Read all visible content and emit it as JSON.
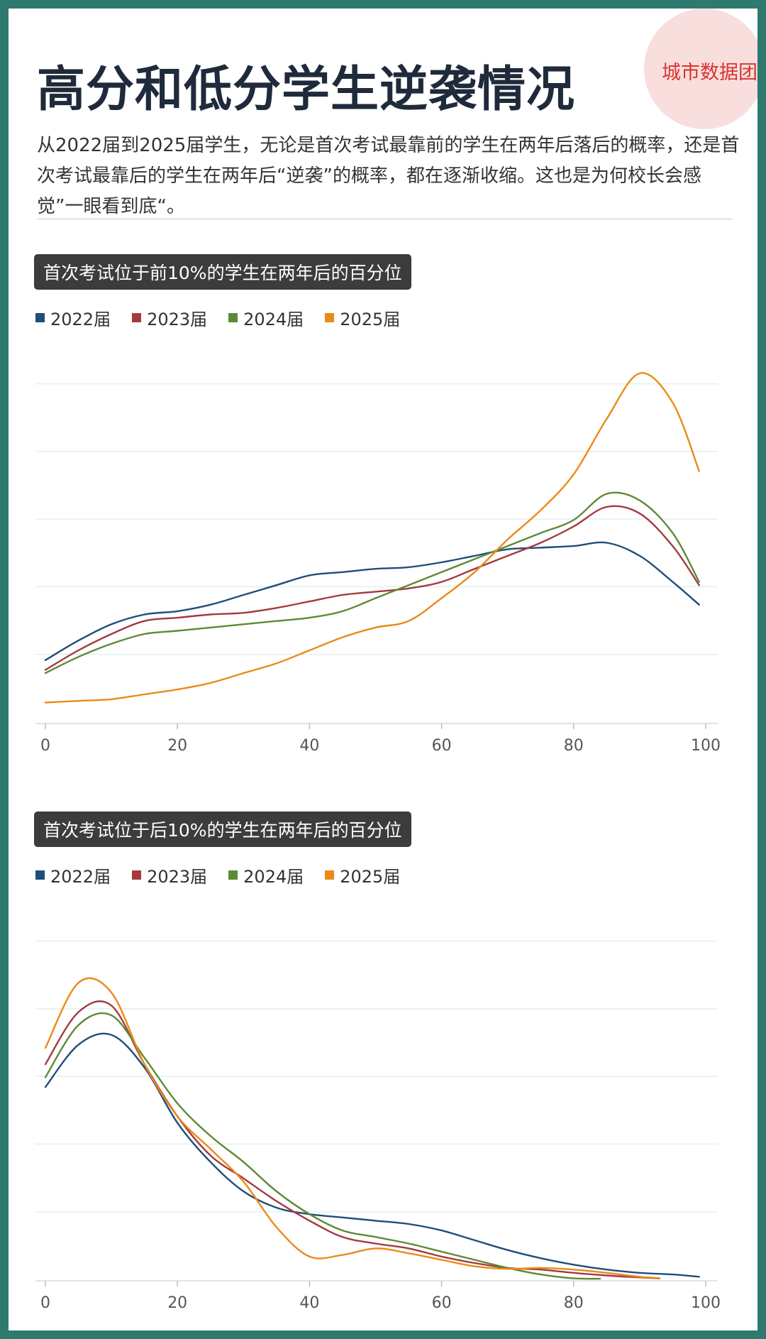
{
  "header": {
    "title": "高分和低分学生逆袭情况",
    "description": "从2022届到2025届学生，无论是首次考试最靠前的学生在两年后落后的概率，还是首次考试最靠后的学生在两年后“逆袭”的概率，都在逐渐收缩。这也是为何校长会感觉”一眼看到底“。",
    "watermark": "城市数据团"
  },
  "colors": {
    "2022届": "#1f4e79",
    "2023届": "#a33a3f",
    "2024届": "#5e8a35",
    "2025届": "#eb8a17",
    "background": "#2f7a6e"
  },
  "chart_data": [
    {
      "type": "line",
      "title": "首次考试位于前10%的学生在两年后的百分位",
      "legend_placement": "top-left",
      "grid": true,
      "xlim": [
        0,
        100
      ],
      "x_ticks": [
        "0",
        "20",
        "40",
        "60",
        "80",
        "100"
      ],
      "y_hidden": true,
      "ylim": [
        0,
        1.1
      ],
      "series": [
        {
          "name": "2022届",
          "x": [
            0,
            5,
            10,
            15,
            20,
            25,
            30,
            35,
            40,
            45,
            50,
            55,
            60,
            65,
            70,
            75,
            80,
            85,
            90,
            95,
            99
          ],
          "y": [
            0.19,
            0.25,
            0.3,
            0.33,
            0.34,
            0.36,
            0.39,
            0.42,
            0.45,
            0.46,
            0.47,
            0.475,
            0.49,
            0.51,
            0.53,
            0.535,
            0.54,
            0.55,
            0.51,
            0.43,
            0.36
          ]
        },
        {
          "name": "2023届",
          "x": [
            0,
            5,
            10,
            15,
            20,
            25,
            30,
            35,
            40,
            45,
            50,
            55,
            60,
            65,
            70,
            75,
            80,
            85,
            90,
            95,
            99
          ],
          "y": [
            0.16,
            0.22,
            0.27,
            0.31,
            0.32,
            0.33,
            0.335,
            0.35,
            0.37,
            0.39,
            0.4,
            0.41,
            0.43,
            0.47,
            0.51,
            0.55,
            0.6,
            0.66,
            0.64,
            0.54,
            0.42
          ]
        },
        {
          "name": "2024届",
          "x": [
            0,
            5,
            10,
            15,
            20,
            25,
            30,
            35,
            40,
            45,
            50,
            55,
            60,
            65,
            70,
            75,
            80,
            85,
            90,
            95,
            99
          ],
          "y": [
            0.15,
            0.2,
            0.24,
            0.27,
            0.28,
            0.29,
            0.3,
            0.31,
            0.32,
            0.34,
            0.38,
            0.42,
            0.46,
            0.5,
            0.54,
            0.58,
            0.62,
            0.7,
            0.68,
            0.58,
            0.43
          ]
        },
        {
          "name": "2025届",
          "x": [
            0,
            5,
            10,
            15,
            20,
            25,
            30,
            35,
            40,
            45,
            50,
            55,
            60,
            65,
            70,
            75,
            80,
            85,
            90,
            95,
            99
          ],
          "y": [
            0.06,
            0.065,
            0.07,
            0.085,
            0.1,
            0.12,
            0.15,
            0.18,
            0.22,
            0.26,
            0.29,
            0.31,
            0.38,
            0.46,
            0.56,
            0.65,
            0.76,
            0.93,
            1.07,
            0.98,
            0.77
          ]
        }
      ]
    },
    {
      "type": "line",
      "title": "首次考试位于后10%的学生在两年后的百分位",
      "legend_placement": "top-left",
      "grid": true,
      "xlim": [
        0,
        100
      ],
      "x_ticks": [
        "0",
        "20",
        "40",
        "60",
        "80",
        "100"
      ],
      "y_hidden": true,
      "ylim": [
        0,
        1.1
      ],
      "series": [
        {
          "name": "2022届",
          "x": [
            0,
            5,
            10,
            15,
            20,
            25,
            30,
            35,
            40,
            45,
            50,
            55,
            60,
            65,
            70,
            75,
            80,
            85,
            90,
            95,
            99
          ],
          "y": [
            0.59,
            0.72,
            0.75,
            0.65,
            0.48,
            0.36,
            0.27,
            0.22,
            0.2,
            0.19,
            0.18,
            0.17,
            0.15,
            0.12,
            0.09,
            0.065,
            0.045,
            0.03,
            0.02,
            0.015,
            0.008
          ]
        },
        {
          "name": "2023届",
          "x": [
            0,
            5,
            10,
            15,
            20,
            25,
            30,
            35,
            40,
            45,
            50,
            55,
            60,
            65,
            70,
            75,
            80,
            85,
            90,
            93
          ],
          "y": [
            0.66,
            0.82,
            0.84,
            0.66,
            0.5,
            0.38,
            0.31,
            0.24,
            0.18,
            0.13,
            0.11,
            0.095,
            0.07,
            0.05,
            0.035,
            0.03,
            0.02,
            0.012,
            0.006,
            0.003
          ]
        },
        {
          "name": "2024届",
          "x": [
            0,
            5,
            10,
            15,
            20,
            25,
            30,
            35,
            40,
            45,
            50,
            55,
            60,
            65,
            70,
            75,
            80,
            84
          ],
          "y": [
            0.62,
            0.78,
            0.81,
            0.68,
            0.54,
            0.44,
            0.36,
            0.27,
            0.2,
            0.15,
            0.13,
            0.11,
            0.085,
            0.06,
            0.035,
            0.015,
            0.003,
            0.002
          ]
        },
        {
          "name": "2025届",
          "x": [
            0,
            5,
            10,
            15,
            20,
            25,
            30,
            35,
            40,
            45,
            50,
            55,
            60,
            65,
            70,
            75,
            80,
            85,
            90,
            93
          ],
          "y": [
            0.71,
            0.91,
            0.88,
            0.66,
            0.5,
            0.4,
            0.3,
            0.16,
            0.07,
            0.075,
            0.095,
            0.08,
            0.06,
            0.04,
            0.032,
            0.035,
            0.03,
            0.02,
            0.008,
            0.004
          ]
        }
      ]
    }
  ]
}
